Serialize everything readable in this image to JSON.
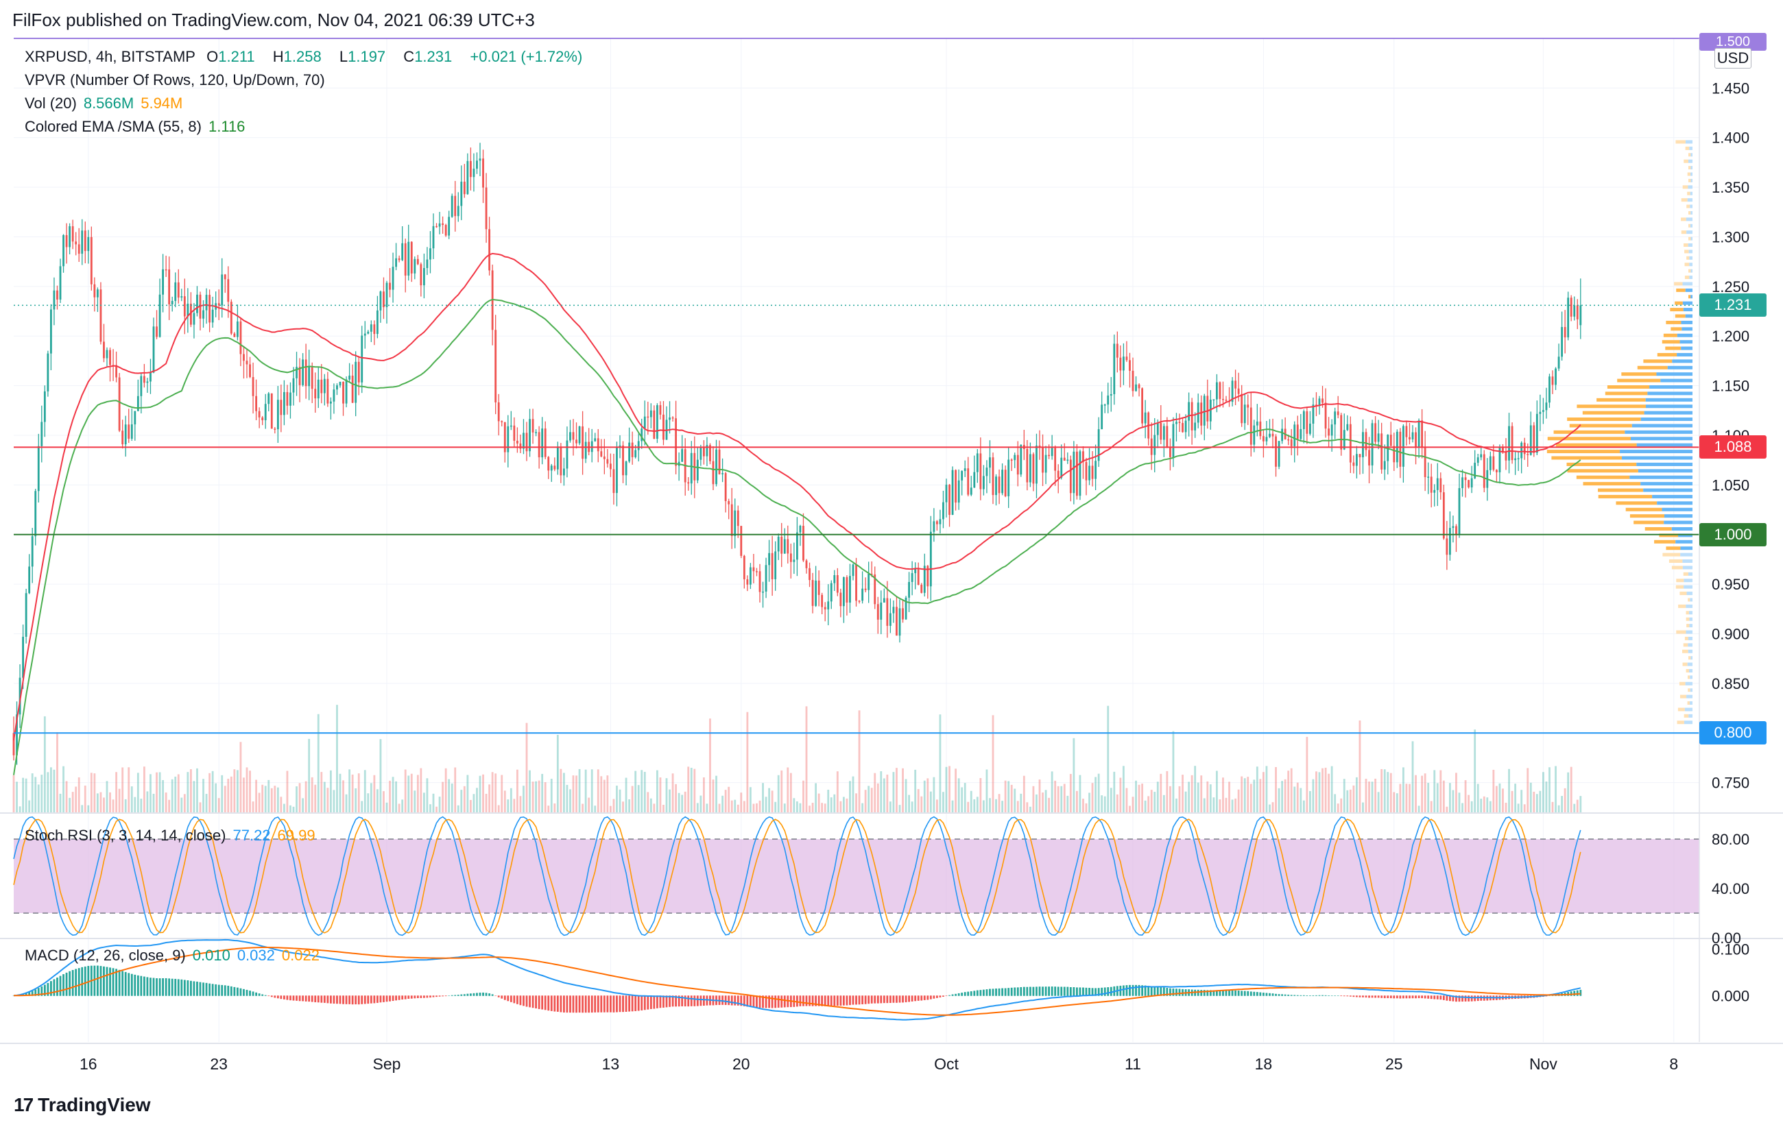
{
  "header": "FilFox published on TradingView.com, Nov 04, 2021 06:39 UTC+3",
  "footer": {
    "brand": "TradingView"
  },
  "legend": {
    "symbol": "XRPUSD, 4h, BITSTAMP",
    "open_label": "O",
    "open": "1.211",
    "high_label": "H",
    "high": "1.258",
    "low_label": "L",
    "low": "1.197",
    "close_label": "C",
    "close": "1.231",
    "change": "+0.021 (+1.72%)",
    "vpvr": "VPVR (Number Of Rows, 120, Up/Down, 70)",
    "vol_name": "Vol (20)",
    "vol_value1": "8.566M",
    "vol_value2": "5.94M",
    "ema_name": "Colored EMA /SMA (55, 8)",
    "ema_value": "1.116",
    "stoch_name": "Stoch RSI (3, 3, 14, 14, close)",
    "stoch_k": "77.22",
    "stoch_d": "69.99",
    "macd_name": "MACD (12, 26, close, 9)",
    "macd_hist": "0.010",
    "macd_line": "0.032",
    "macd_signal": "0.022"
  },
  "price_axis": {
    "currency": "USD",
    "ticks": [
      "1.450",
      "1.400",
      "1.350",
      "1.300",
      "1.250",
      "1.200",
      "1.150",
      "1.100",
      "1.050",
      "1.000",
      "0.950",
      "0.900",
      "0.850",
      "0.800",
      "0.750"
    ],
    "top_tick": "1.500"
  },
  "price_tags": [
    {
      "label": "1.231",
      "value": 1.231,
      "color": "#26a69a"
    },
    {
      "label": "1.088",
      "value": 1.088,
      "color": "#f23645"
    },
    {
      "label": "1.000",
      "value": 1.0,
      "color": "#2e7d32"
    },
    {
      "label": "0.800",
      "value": 0.8,
      "color": "#2196f3"
    }
  ],
  "stoch_axis": [
    "80.00",
    "40.00",
    "0.00"
  ],
  "macd_axis": [
    "0.100",
    "0.000"
  ],
  "time_labels": [
    "16",
    "23",
    "Sep",
    "13",
    "20",
    "Oct",
    "11",
    "18",
    "25",
    "Nov",
    "8"
  ],
  "colors": {
    "up": "#26a69a",
    "down": "#ef5350",
    "sma": "#4caf50",
    "ema": "#f23645",
    "stoch_k": "#2196f3",
    "stoch_d": "#ff9800",
    "macd": "#2196f3",
    "signal": "#ff6d00",
    "stoch_band": "#e1bee7"
  },
  "chart_data": {
    "type": "candlestick",
    "symbol": "XRPUSD",
    "interval": "4h",
    "ylim": [
      0.72,
      1.5
    ],
    "x_range": [
      "Aug 12, 2021",
      "Nov 10, 2021"
    ],
    "horizontal_levels": [
      1.5,
      1.088,
      1.0,
      0.8
    ],
    "price_path": [
      [
        "Aug 12",
        0.8
      ],
      [
        "Aug 13",
        0.99
      ],
      [
        "Aug 14",
        1.23
      ],
      [
        "Aug 15",
        1.31
      ],
      [
        "Aug 16",
        1.28
      ],
      [
        "Aug 17",
        1.18
      ],
      [
        "Aug 18",
        1.1
      ],
      [
        "Aug 19",
        1.15
      ],
      [
        "Aug 20",
        1.25
      ],
      [
        "Aug 21",
        1.23
      ],
      [
        "Aug 22",
        1.22
      ],
      [
        "Aug 23",
        1.25
      ],
      [
        "Aug 24",
        1.21
      ],
      [
        "Aug 25",
        1.14
      ],
      [
        "Aug 26",
        1.11
      ],
      [
        "Aug 27",
        1.15
      ],
      [
        "Aug 28",
        1.16
      ],
      [
        "Aug 29",
        1.13
      ],
      [
        "Aug 30",
        1.14
      ],
      [
        "Aug 31",
        1.2
      ],
      [
        "Sep 1",
        1.24
      ],
      [
        "Sep 2",
        1.28
      ],
      [
        "Sep 3",
        1.27
      ],
      [
        "Sep 4",
        1.31
      ],
      [
        "Sep 5",
        1.36
      ],
      [
        "Sep 6",
        1.39
      ],
      [
        "Sep 7",
        1.1
      ],
      [
        "Sep 8",
        1.09
      ],
      [
        "Sep 9",
        1.1
      ],
      [
        "Sep 10",
        1.07
      ],
      [
        "Sep 11",
        1.09
      ],
      [
        "Sep 12",
        1.08
      ],
      [
        "Sep 13",
        1.06
      ],
      [
        "Sep 14",
        1.08
      ],
      [
        "Sep 15",
        1.12
      ],
      [
        "Sep 16",
        1.11
      ],
      [
        "Sep 17",
        1.07
      ],
      [
        "Sep 18",
        1.07
      ],
      [
        "Sep 19",
        1.06
      ],
      [
        "Sep 20",
        0.98
      ],
      [
        "Sep 21",
        0.94
      ],
      [
        "Sep 22",
        0.98
      ],
      [
        "Sep 23",
        1.0
      ],
      [
        "Sep 24",
        0.94
      ],
      [
        "Sep 25",
        0.95
      ],
      [
        "Sep 26",
        0.95
      ],
      [
        "Sep 27",
        0.94
      ],
      [
        "Sep 28",
        0.91
      ],
      [
        "Sep 29",
        0.94
      ],
      [
        "Sep 30",
        0.97
      ],
      [
        "Oct 1",
        1.04
      ],
      [
        "Oct 2",
        1.05
      ],
      [
        "Oct 3",
        1.07
      ],
      [
        "Oct 4",
        1.05
      ],
      [
        "Oct 5",
        1.07
      ],
      [
        "Oct 6",
        1.07
      ],
      [
        "Oct 7",
        1.07
      ],
      [
        "Oct 8",
        1.06
      ],
      [
        "Oct 9",
        1.08
      ],
      [
        "Oct 10",
        1.18
      ],
      [
        "Oct 11",
        1.16
      ],
      [
        "Oct 12",
        1.1
      ],
      [
        "Oct 13",
        1.09
      ],
      [
        "Oct 14",
        1.12
      ],
      [
        "Oct 15",
        1.13
      ],
      [
        "Oct 16",
        1.14
      ],
      [
        "Oct 17",
        1.12
      ],
      [
        "Oct 18",
        1.09
      ],
      [
        "Oct 19",
        1.09
      ],
      [
        "Oct 20",
        1.1
      ],
      [
        "Oct 21",
        1.12
      ],
      [
        "Oct 22",
        1.1
      ],
      [
        "Oct 23",
        1.09
      ],
      [
        "Oct 24",
        1.09
      ],
      [
        "Oct 25",
        1.08
      ],
      [
        "Oct 26",
        1.11
      ],
      [
        "Oct 27",
        1.06
      ],
      [
        "Oct 28",
        0.99
      ],
      [
        "Oct 29",
        1.06
      ],
      [
        "Oct 30",
        1.07
      ],
      [
        "Oct 31",
        1.09
      ],
      [
        "Nov 1",
        1.09
      ],
      [
        "Nov 2",
        1.11
      ],
      [
        "Nov 3",
        1.21
      ],
      [
        "Nov 4",
        1.231
      ]
    ],
    "last": {
      "open": 1.211,
      "high": 1.258,
      "low": 1.197,
      "close": 1.231,
      "change": 0.021,
      "change_pct": 1.72
    },
    "indicators": {
      "colored_ema_sma": {
        "period": [
          55,
          8
        ],
        "value": 1.116
      },
      "volume": {
        "period": 20,
        "values": [
          "8.566M",
          "5.94M"
        ]
      },
      "stoch_rsi": {
        "k": 77.22,
        "d": 69.99,
        "levels": [
          80,
          20
        ],
        "ylim": [
          0,
          100
        ]
      },
      "macd": {
        "histogram": 0.01,
        "macd": 0.032,
        "signal": 0.022
      }
    }
  }
}
